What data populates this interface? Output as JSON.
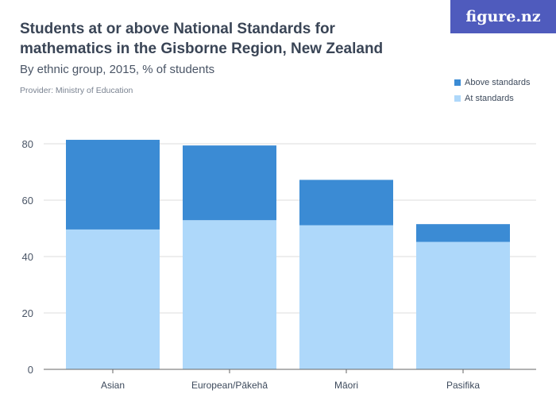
{
  "title": "Students at or above National Standards for mathematics in the Gisborne Region, New Zealand",
  "subtitle": "By ethnic group, 2015, % of students",
  "provider": "Provider: Ministry of Education",
  "logo": "figure.nz",
  "colors": {
    "above": "#3b8bd4",
    "at": "#aed8fa",
    "grid": "#dddddd",
    "brand": "#4f5bbd"
  },
  "chart_data": {
    "type": "bar",
    "stacked": true,
    "categories": [
      "Asian",
      "European/Pākehā",
      "Māori",
      "Pasifika"
    ],
    "series": [
      {
        "name": "At standards",
        "values": [
          49.6,
          52.9,
          51.1,
          45.2
        ]
      },
      {
        "name": "Above standards",
        "values": [
          31.8,
          26.5,
          16.1,
          6.3
        ]
      }
    ],
    "yticks": [
      "0",
      "20",
      "40",
      "60",
      "80"
    ],
    "ylim": [
      0,
      80
    ],
    "grid": true,
    "legend": "top-right"
  }
}
